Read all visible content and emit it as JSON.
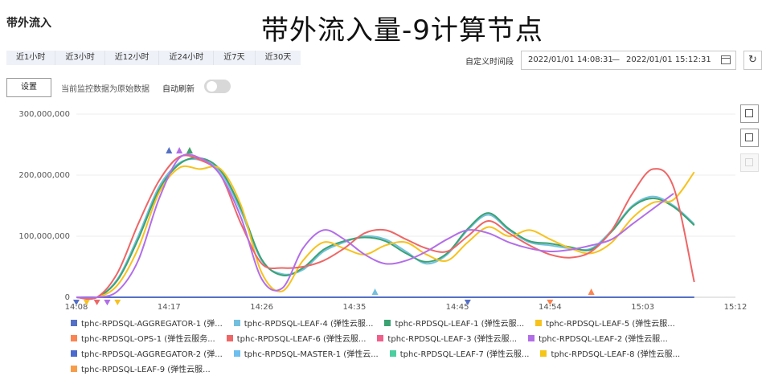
{
  "panel": {
    "section_title": "带外流入",
    "chart_title": "带外流入量-9计算节点"
  },
  "time_ranges": [
    "近1小时",
    "近3小时",
    "近12小时",
    "近24小时",
    "近7天",
    "近30天"
  ],
  "custom_range": {
    "label": "自定义时间段",
    "start": "2022/01/01 14:08:31",
    "separator": "—",
    "end": "2022/01/01 15:12:31"
  },
  "toolbar": {
    "settings_label": "设置",
    "data_note": "当前监控数据为原始数据",
    "auto_refresh_label": "自动刷新",
    "auto_refresh_on": false,
    "refresh_icon": "↻"
  },
  "colors": {
    "toggle_off": "#d8d8d8",
    "axis": "#cccccc"
  },
  "legend": [
    {
      "label": "tphc-RPDSQL-AGGREGATOR-1 (弹...",
      "color": "#5470c6"
    },
    {
      "label": "tphc-RPDSQL-LEAF-4 (弹性云服...",
      "color": "#73c0de"
    },
    {
      "label": "tphc-RPDSQL-LEAF-1 (弹性云服...",
      "color": "#3ba272"
    },
    {
      "label": "tphc-RPDSQL-LEAF-5 (弹性云服...",
      "color": "#f7c21e"
    },
    {
      "label": "tphc-RPDSQL-OPS-1 (弹性云服务...",
      "color": "#fc8452"
    },
    {
      "label": "tphc-RPDSQL-LEAF-6 (弹性云服...",
      "color": "#ee6666"
    },
    {
      "label": "tphc-RPDSQL-LEAF-3 (弹性云服...",
      "color": "#f0608a"
    },
    {
      "label": "tphc-RPDSQL-LEAF-2 (弹性云服...",
      "color": "#b26ee8"
    },
    {
      "label": "tphc-RPDSQL-AGGREGATOR-2 (弹...",
      "color": "#4a6ad0"
    },
    {
      "label": "tphc-RPDSQL-MASTER-1 (弹性云...",
      "color": "#6cbfee"
    },
    {
      "label": "tphc-RPDSQL-LEAF-7 (弹性云服...",
      "color": "#4ccfa0"
    },
    {
      "label": "tphc-RPDSQL-LEAF-8 (弹性云服...",
      "color": "#f5c518"
    },
    {
      "label": "tphc-RPDSQL-LEAF-9 (弹性云服...",
      "color": "#f79d4a"
    }
  ],
  "chart_data": {
    "type": "line",
    "ylabel_ticks": [
      "0",
      "100,000,000",
      "200,000,000",
      "300,000,000"
    ],
    "ylim": [
      0,
      300000000
    ],
    "x_ticks": [
      "14:08",
      "14:17",
      "14:26",
      "14:35",
      "14:45",
      "14:54",
      "15:03",
      "15:12"
    ],
    "x": [
      "14:08",
      "14:10",
      "14:12",
      "14:14",
      "14:16",
      "14:18",
      "14:20",
      "14:22",
      "14:24",
      "14:26",
      "14:28",
      "14:30",
      "14:32",
      "14:34",
      "14:36",
      "14:38",
      "14:40",
      "14:42",
      "14:44",
      "14:46",
      "14:48",
      "14:50",
      "14:52",
      "14:54",
      "14:56",
      "14:58",
      "15:00",
      "15:02",
      "15:04",
      "15:06",
      "15:08",
      "15:10"
    ],
    "series": [
      {
        "name": "tphc-RPDSQL-AGGREGATOR-1 (弹...",
        "color": "#5470c6",
        "values": [
          0,
          0,
          0,
          0,
          0,
          0,
          0,
          0,
          0,
          0,
          0,
          0,
          0,
          0,
          0,
          0,
          0,
          0,
          0,
          0,
          0,
          0,
          0,
          0,
          0,
          0,
          0,
          0,
          0,
          0,
          0,
          null
        ]
      },
      {
        "name": "tphc-RPDSQL-LEAF-4 (弹性云服...",
        "color": "#73c0de",
        "values": [
          0,
          0,
          30000000,
          100000000,
          180000000,
          220000000,
          225000000,
          205000000,
          140000000,
          60000000,
          38000000,
          45000000,
          75000000,
          90000000,
          100000000,
          95000000,
          75000000,
          55000000,
          70000000,
          110000000,
          135000000,
          110000000,
          90000000,
          85000000,
          80000000,
          80000000,
          110000000,
          150000000,
          165000000,
          150000000,
          120000000,
          null
        ]
      },
      {
        "name": "tphc-RPDSQL-LEAF-1 (弹性云服...",
        "color": "#3ba272",
        "values": [
          0,
          0,
          28000000,
          95000000,
          175000000,
          218000000,
          228000000,
          208000000,
          145000000,
          62000000,
          36000000,
          48000000,
          78000000,
          92000000,
          98000000,
          92000000,
          72000000,
          58000000,
          72000000,
          112000000,
          138000000,
          112000000,
          92000000,
          88000000,
          82000000,
          78000000,
          108000000,
          148000000,
          162000000,
          148000000,
          118000000,
          null
        ]
      },
      {
        "name": "tphc-RPDSQL-LEAF-5 (弹性云服...",
        "color": "#f7c21e",
        "values": [
          0,
          0,
          20000000,
          80000000,
          170000000,
          212000000,
          210000000,
          210000000,
          150000000,
          40000000,
          10000000,
          60000000,
          90000000,
          80000000,
          70000000,
          85000000,
          90000000,
          70000000,
          60000000,
          90000000,
          115000000,
          100000000,
          110000000,
          95000000,
          80000000,
          72000000,
          90000000,
          130000000,
          155000000,
          160000000,
          205000000,
          null
        ]
      },
      {
        "name": "tphc-RPDSQL-LEAF-6 (弹性云服...",
        "color": "#ee6666",
        "values": [
          0,
          0,
          40000000,
          120000000,
          190000000,
          230000000,
          225000000,
          200000000,
          120000000,
          55000000,
          48000000,
          50000000,
          60000000,
          80000000,
          105000000,
          110000000,
          95000000,
          80000000,
          75000000,
          100000000,
          125000000,
          105000000,
          85000000,
          70000000,
          65000000,
          75000000,
          110000000,
          170000000,
          210000000,
          180000000,
          25000000,
          null
        ]
      },
      {
        "name": "tphc-RPDSQL-LEAF-2 (弹性云服...",
        "color": "#b26ee8",
        "values": [
          0,
          0,
          10000000,
          60000000,
          160000000,
          228000000,
          228000000,
          200000000,
          130000000,
          30000000,
          15000000,
          80000000,
          110000000,
          95000000,
          70000000,
          55000000,
          60000000,
          75000000,
          95000000,
          110000000,
          105000000,
          90000000,
          80000000,
          75000000,
          78000000,
          85000000,
          95000000,
          120000000,
          145000000,
          170000000,
          null,
          null
        ]
      }
    ],
    "markers": [
      {
        "x": "14:08",
        "shape": "down",
        "color": "#5470c6"
      },
      {
        "x": "14:09",
        "shape": "down",
        "color": "#f7c21e"
      },
      {
        "x": "14:10",
        "shape": "down",
        "color": "#ee6666"
      },
      {
        "x": "14:11",
        "shape": "down",
        "color": "#5470c6"
      },
      {
        "x": "14:11",
        "shape": "down",
        "color": "#b26ee8"
      },
      {
        "x": "14:12",
        "shape": "down",
        "color": "#f7c21e"
      },
      {
        "x": "14:17",
        "shape": "up",
        "color": "#5470c6"
      },
      {
        "x": "14:18",
        "shape": "up",
        "color": "#b26ee8"
      },
      {
        "x": "14:19",
        "shape": "up",
        "color": "#f7c21e"
      },
      {
        "x": "14:19",
        "shape": "up",
        "color": "#3ba272"
      },
      {
        "x": "14:37",
        "shape": "up",
        "color": "#73c0de"
      },
      {
        "x": "14:46",
        "shape": "down",
        "color": "#5470c6"
      },
      {
        "x": "14:54",
        "shape": "down",
        "color": "#fc8452"
      },
      {
        "x": "14:58",
        "shape": "up",
        "color": "#fc8452"
      }
    ],
    "legend_position": "bottom",
    "grid": "horizontal"
  }
}
